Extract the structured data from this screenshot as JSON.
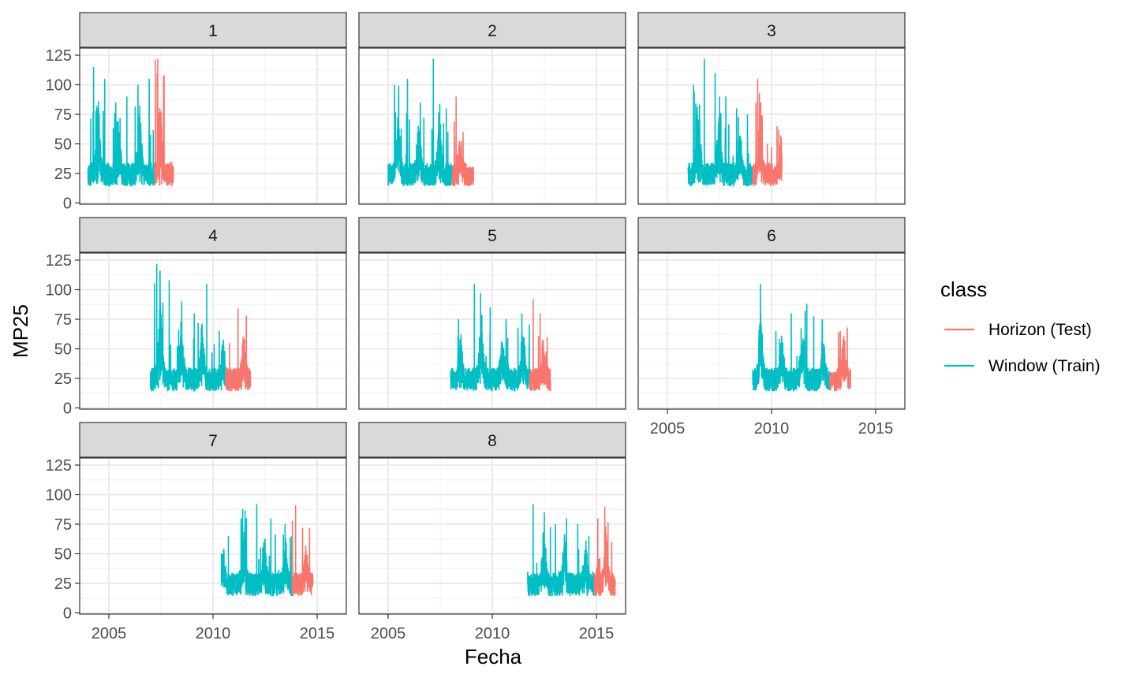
{
  "chart_data": {
    "type": "line",
    "facet_variable": "",
    "xlabel": "Fecha",
    "ylabel": "MP25",
    "xlim": [
      2003.6,
      2016.4
    ],
    "ylim": [
      -1,
      131
    ],
    "x_ticks": [
      2005,
      2010,
      2015
    ],
    "y_ticks": [
      0,
      25,
      50,
      75,
      100,
      125
    ],
    "grid": true,
    "legend": {
      "title": "class",
      "position": "right",
      "entries": [
        {
          "label": "Horizon (Test)",
          "color": "#F8766D"
        },
        {
          "label": "Window (Train)",
          "color": "#00BFC4"
        }
      ]
    },
    "facets": [
      {
        "label": "1",
        "train": [
          2004.0,
          2007.2
        ],
        "test": [
          2007.2,
          2008.1
        ],
        "train_peaks": [
          115,
          105,
          85,
          90,
          100,
          105
        ],
        "test_peaks": [
          122,
          108,
          35
        ]
      },
      {
        "label": "2",
        "train": [
          2005.0,
          2008.1
        ],
        "test": [
          2008.1,
          2009.1
        ],
        "train_peaks": [
          100,
          105,
          85,
          122,
          80
        ],
        "test_peaks": [
          90,
          60,
          30
        ]
      },
      {
        "label": "3",
        "train": [
          2006.0,
          2009.1
        ],
        "test": [
          2009.1,
          2010.5
        ],
        "train_peaks": [
          100,
          122,
          110,
          90,
          80,
          75
        ],
        "test_peaks": [
          105,
          50,
          65
        ]
      },
      {
        "label": "4",
        "train": [
          2007.0,
          2010.6
        ],
        "test": [
          2010.6,
          2011.8
        ],
        "train_peaks": [
          122,
          108,
          90,
          80,
          105,
          65
        ],
        "test_peaks": [
          55,
          84,
          78
        ]
      },
      {
        "label": "5",
        "train": [
          2008.0,
          2011.8
        ],
        "test": [
          2011.8,
          2012.8
        ],
        "train_peaks": [
          75,
          105,
          85,
          75,
          80
        ],
        "test_peaks": [
          92,
          80,
          60
        ]
      },
      {
        "label": "6",
        "train": [
          2009.1,
          2012.8
        ],
        "test": [
          2012.8,
          2013.8
        ],
        "train_peaks": [
          105,
          65,
          80,
          88,
          75
        ],
        "test_peaks": [
          30,
          65,
          68
        ]
      },
      {
        "label": "7",
        "train": [
          2010.4,
          2013.8
        ],
        "test": [
          2013.8,
          2014.8
        ],
        "train_peaks": [
          65,
          88,
          92,
          80,
          75
        ],
        "test_peaks": [
          91,
          72,
          72
        ]
      },
      {
        "label": "8",
        "train": [
          2011.7,
          2014.9
        ],
        "test": [
          2014.9,
          2015.9
        ],
        "train_peaks": [
          92,
          85,
          75,
          80,
          75,
          65
        ],
        "test_peaks": [
          80,
          90,
          60
        ]
      }
    ]
  }
}
